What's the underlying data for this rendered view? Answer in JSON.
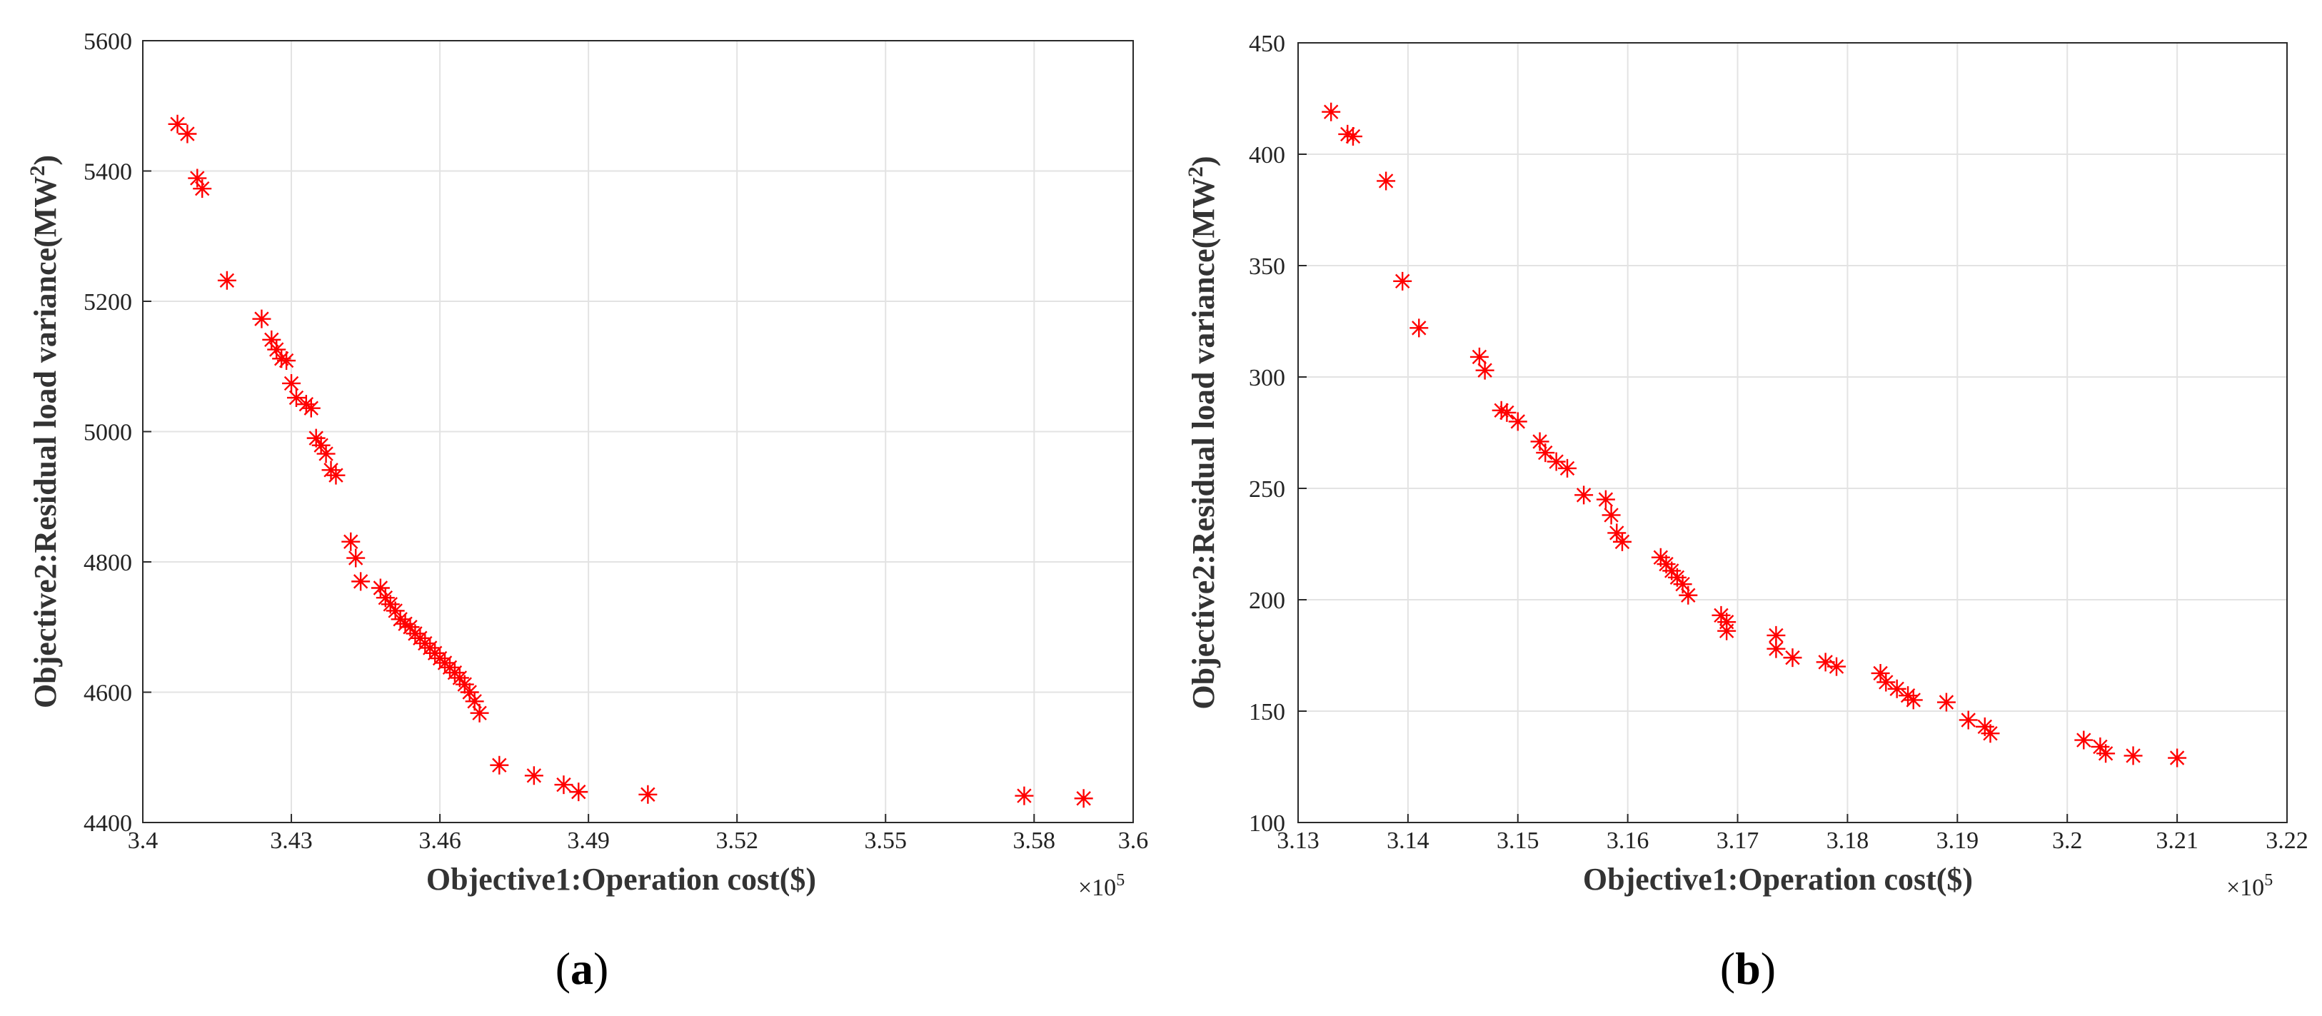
{
  "chart_data": [
    {
      "type": "scatter",
      "panel": "a",
      "caption_letter": "a",
      "xlabel": "Objective1:Operation cost($)",
      "ylabel": "Objective2:Residual load variance(MW",
      "ylabel_sup": "2",
      "ylabel_tail": ")",
      "x_multiplier": "×10",
      "x_multiplier_exp": "5",
      "xlim": [
        3.4,
        3.6
      ],
      "ylim": [
        4400,
        5600
      ],
      "xticks": [
        3.4,
        3.43,
        3.46,
        3.49,
        3.52,
        3.55,
        3.58,
        3.6
      ],
      "xtick_labels": [
        "3.4",
        "3.43",
        "3.46",
        "3.49",
        "3.52",
        "3.55",
        "3.58",
        "3.6"
      ],
      "yticks": [
        4400,
        4600,
        4800,
        5000,
        5200,
        5400,
        5600
      ],
      "ytick_labels": [
        "4400",
        "4600",
        "4800",
        "5000",
        "5200",
        "5400",
        "5600"
      ],
      "marker": "asterisk",
      "color": "#ff0000",
      "points": [
        [
          3.407,
          5472
        ],
        [
          3.409,
          5457
        ],
        [
          3.411,
          5389
        ],
        [
          3.412,
          5373
        ],
        [
          3.417,
          5232
        ],
        [
          3.424,
          5173
        ],
        [
          3.426,
          5141
        ],
        [
          3.427,
          5126
        ],
        [
          3.428,
          5112
        ],
        [
          3.429,
          5109
        ],
        [
          3.43,
          5074
        ],
        [
          3.431,
          5052
        ],
        [
          3.433,
          5042
        ],
        [
          3.434,
          5036
        ],
        [
          3.435,
          4990
        ],
        [
          3.436,
          4979
        ],
        [
          3.437,
          4966
        ],
        [
          3.438,
          4941
        ],
        [
          3.439,
          4933
        ],
        [
          3.442,
          4831
        ],
        [
          3.443,
          4806
        ],
        [
          3.444,
          4770
        ],
        [
          3.448,
          4760
        ],
        [
          3.449,
          4745
        ],
        [
          3.45,
          4735
        ],
        [
          3.451,
          4725
        ],
        [
          3.452,
          4712
        ],
        [
          3.453,
          4705
        ],
        [
          3.454,
          4700
        ],
        [
          3.455,
          4690
        ],
        [
          3.456,
          4683
        ],
        [
          3.457,
          4675
        ],
        [
          3.458,
          4668
        ],
        [
          3.459,
          4660
        ],
        [
          3.46,
          4652
        ],
        [
          3.461,
          4645
        ],
        [
          3.462,
          4638
        ],
        [
          3.463,
          4630
        ],
        [
          3.464,
          4622
        ],
        [
          3.465,
          4612
        ],
        [
          3.466,
          4600
        ],
        [
          3.467,
          4586
        ],
        [
          3.468,
          4568
        ],
        [
          3.472,
          4488
        ],
        [
          3.479,
          4472
        ],
        [
          3.485,
          4458
        ],
        [
          3.488,
          4447
        ],
        [
          3.502,
          4443
        ],
        [
          3.578,
          4441
        ],
        [
          3.59,
          4437
        ]
      ]
    },
    {
      "type": "scatter",
      "panel": "b",
      "caption_letter": "b",
      "xlabel": "Objective1:Operation cost($)",
      "ylabel": "Objective2:Residual load variance(MW",
      "ylabel_sup": "2",
      "ylabel_tail": ")",
      "x_multiplier": "×10",
      "x_multiplier_exp": "5",
      "xlim": [
        3.13,
        3.22
      ],
      "ylim": [
        100,
        450
      ],
      "xticks": [
        3.13,
        3.14,
        3.15,
        3.16,
        3.17,
        3.18,
        3.19,
        3.2,
        3.21,
        3.22
      ],
      "xtick_labels": [
        "3.13",
        "3.14",
        "3.15",
        "3.16",
        "3.17",
        "3.18",
        "3.19",
        "3.2",
        "3.21",
        "3.22"
      ],
      "yticks": [
        100,
        150,
        200,
        250,
        300,
        350,
        400,
        450
      ],
      "ytick_labels": [
        "100",
        "150",
        "200",
        "250",
        "300",
        "350",
        "400",
        "450"
      ],
      "marker": "asterisk",
      "color": "#ff0000",
      "points": [
        [
          3.133,
          419
        ],
        [
          3.1345,
          409
        ],
        [
          3.135,
          408
        ],
        [
          3.138,
          388
        ],
        [
          3.1395,
          343
        ],
        [
          3.141,
          322
        ],
        [
          3.1465,
          309
        ],
        [
          3.147,
          303
        ],
        [
          3.1485,
          285
        ],
        [
          3.149,
          284
        ],
        [
          3.15,
          280
        ],
        [
          3.152,
          271
        ],
        [
          3.1525,
          266
        ],
        [
          3.1535,
          262
        ],
        [
          3.1545,
          259
        ],
        [
          3.156,
          247
        ],
        [
          3.158,
          245
        ],
        [
          3.1585,
          238
        ],
        [
          3.159,
          230
        ],
        [
          3.1595,
          226
        ],
        [
          3.163,
          219
        ],
        [
          3.1635,
          216
        ],
        [
          3.164,
          213
        ],
        [
          3.1645,
          210
        ],
        [
          3.165,
          207
        ],
        [
          3.1655,
          202
        ],
        [
          3.1685,
          193
        ],
        [
          3.169,
          190
        ],
        [
          3.169,
          186
        ],
        [
          3.1735,
          184
        ],
        [
          3.1735,
          178
        ],
        [
          3.175,
          174
        ],
        [
          3.178,
          172
        ],
        [
          3.179,
          170
        ],
        [
          3.183,
          167
        ],
        [
          3.1835,
          163
        ],
        [
          3.1845,
          160
        ],
        [
          3.1855,
          157
        ],
        [
          3.186,
          155
        ],
        [
          3.189,
          154
        ],
        [
          3.191,
          146
        ],
        [
          3.1925,
          143
        ],
        [
          3.193,
          140
        ],
        [
          3.2015,
          137
        ],
        [
          3.203,
          134
        ],
        [
          3.2035,
          131
        ],
        [
          3.206,
          130
        ],
        [
          3.21,
          129
        ]
      ]
    }
  ]
}
